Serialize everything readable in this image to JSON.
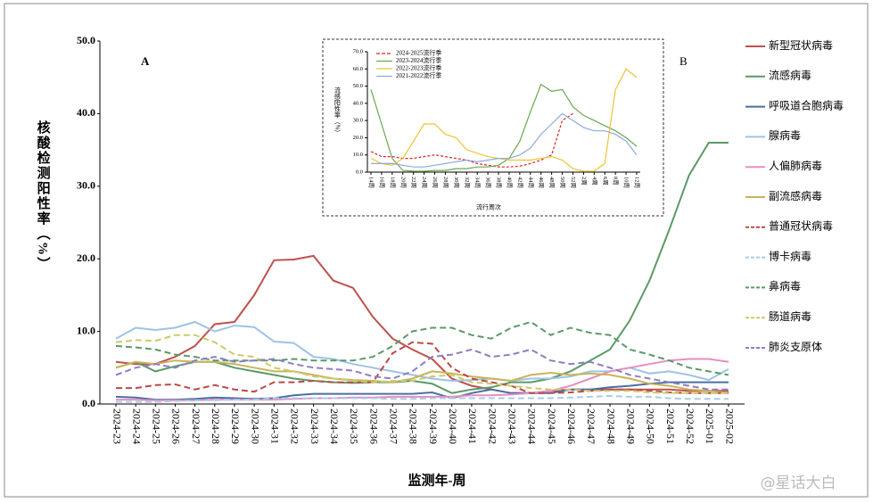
{
  "chart_data": [
    {
      "type": "line",
      "annotations": [
        "A",
        "B"
      ],
      "ylabel": "核酸检测阳性率（%）",
      "xlabel": "监测年-周",
      "categories": [
        "2024-23",
        "2024-24",
        "2024-25",
        "2024-26",
        "2024-27",
        "2024-28",
        "2024-29",
        "2024-30",
        "2024-31",
        "2024-32",
        "2024-33",
        "2024-34",
        "2024-35",
        "2024-36",
        "2024-37",
        "2024-38",
        "2024-39",
        "2024-40",
        "2024-41",
        "2024-42",
        "2024-43",
        "2024-44",
        "2024-45",
        "2024-46",
        "2024-47",
        "2024-48",
        "2024-49",
        "2024-50",
        "2024-51",
        "2024-52",
        "2025-01",
        "2025-02"
      ],
      "ylim": [
        0,
        50
      ],
      "yticks": [
        {
          "value": 0,
          "label": "0.0"
        },
        {
          "value": 10,
          "label": "10.0"
        },
        {
          "value": 20,
          "label": "20.0"
        },
        {
          "value": 30,
          "label": "30.0"
        },
        {
          "value": 40,
          "label": "40.0"
        },
        {
          "value": 50,
          "label": "50.0"
        }
      ],
      "legend": "right",
      "series": [
        {
          "name": "新型冠状病毒",
          "color": "#c0504d",
          "line_style": "solid",
          "values": [
            5.8,
            5.5,
            5.5,
            6.5,
            8,
            11,
            11.3,
            15,
            19.8,
            19.9,
            20.4,
            17,
            16,
            12,
            9,
            7.5,
            6.2,
            3.5,
            2.5,
            2,
            1.5,
            1.5,
            1.8,
            2,
            2,
            2,
            2,
            2,
            2,
            1.8,
            1.8,
            1.8
          ]
        },
        {
          "name": "流感病毒",
          "color": "#5b9a68",
          "line_style": "solid",
          "values": [
            5,
            5.8,
            4.5,
            5.2,
            5.8,
            5.8,
            5,
            4.5,
            4,
            3.5,
            3.2,
            3,
            2.9,
            3,
            3,
            3.2,
            2.8,
            1.5,
            2,
            2.3,
            3,
            3,
            3.5,
            4.5,
            6,
            7.5,
            11.5,
            17,
            24,
            31.5,
            36,
            36
          ]
        },
        {
          "name": "呼吸道合胞病毒",
          "color": "#4a6fa5",
          "line_style": "solid",
          "values": [
            1,
            0.9,
            0.6,
            0.6,
            0.7,
            0.9,
            0.8,
            0.7,
            0.8,
            1.2,
            1.4,
            1.4,
            1.4,
            1.4,
            1.4,
            1.4,
            1.6,
            0.8,
            1.5,
            2,
            1.5,
            1.5,
            1.5,
            2,
            2,
            2.3,
            2.5,
            2.8,
            3,
            3,
            3,
            3
          ]
        },
        {
          "name": "腺病毒",
          "color": "#9dc3e6",
          "line_style": "solid",
          "values": [
            9,
            10.5,
            10.2,
            10.5,
            11.3,
            10,
            10.8,
            10.6,
            8.6,
            8.4,
            6.5,
            6.2,
            5.5,
            5,
            4.5,
            4,
            3.5,
            3.2,
            3.3,
            3.5,
            3.2,
            3.5,
            3.5,
            3.8,
            4.5,
            4.5,
            5,
            4.2,
            4.5,
            4,
            3.3,
            4.8
          ]
        },
        {
          "name": "人偏肺病毒",
          "color": "#e58fbf",
          "line_style": "solid",
          "values": [
            0.6,
            0.6,
            0.5,
            0.5,
            0.5,
            0.6,
            0.6,
            0.6,
            0.6,
            0.7,
            0.8,
            0.8,
            0.9,
            0.9,
            1,
            1,
            1,
            1,
            1.2,
            1.2,
            1.3,
            1.5,
            1.8,
            2.5,
            3.5,
            4.5,
            5,
            5.5,
            6,
            6.2,
            6.2,
            5.8
          ]
        },
        {
          "name": "副流感病毒",
          "color": "#c9b458",
          "line_style": "solid",
          "values": [
            5,
            5.8,
            5.5,
            6,
            5.8,
            5.8,
            5.5,
            5,
            4.5,
            4.5,
            4,
            3.5,
            3.3,
            3.2,
            3,
            3.5,
            4.5,
            4.2,
            3.8,
            3.5,
            3.2,
            4,
            4.3,
            4,
            4.2,
            4,
            3.5,
            2.8,
            2.5,
            2,
            1.8,
            1.5
          ]
        },
        {
          "name": "普通冠状病毒",
          "color": "#b94a48",
          "line_style": "dashed",
          "values": [
            2.2,
            2.2,
            2.6,
            2.7,
            2,
            2.6,
            2,
            1.7,
            3,
            3,
            3.2,
            3,
            3,
            3,
            7,
            8.5,
            8.3,
            5,
            3.5,
            3,
            2.5,
            1.5,
            1.5,
            1.6,
            1.8,
            2,
            2,
            1.8,
            1.6,
            1.5,
            1.5,
            1.5
          ]
        },
        {
          "name": "博卡病毒",
          "color": "#a9cbe8",
          "line_style": "dashed",
          "values": [
            0.3,
            0.3,
            0.3,
            0.4,
            0.5,
            0.5,
            0.6,
            0.6,
            0.8,
            0.8,
            0.8,
            0.8,
            0.8,
            0.8,
            0.7,
            0.7,
            0.8,
            0.8,
            0.8,
            0.8,
            0.8,
            0.8,
            0.8,
            0.9,
            1,
            1.1,
            1,
            1,
            0.8,
            0.7,
            0.7,
            0.7
          ]
        },
        {
          "name": "鼻病毒",
          "color": "#5b9a68",
          "line_style": "dashed",
          "values": [
            8,
            7.8,
            7.5,
            6.8,
            6.5,
            6,
            6,
            6,
            6,
            6.2,
            6,
            6,
            6,
            6.5,
            8,
            10,
            10.5,
            10.5,
            9.5,
            9,
            10.5,
            11.3,
            9.5,
            10.5,
            9.8,
            9.5,
            7.5,
            6.8,
            6,
            5,
            4.5,
            4
          ]
        },
        {
          "name": "肠道病毒",
          "color": "#cfc96a",
          "line_style": "dashed",
          "values": [
            8.5,
            8.8,
            8.7,
            9.5,
            9.5,
            8.5,
            6.8,
            6.5,
            5,
            4.5,
            3.8,
            3.5,
            3.2,
            3,
            3.2,
            3.2,
            3.8,
            4,
            3,
            2.8,
            2.5,
            2.2,
            2,
            2,
            1.8,
            1.8,
            1.8,
            1.6,
            1.5,
            1.5,
            1.5,
            1.5
          ]
        },
        {
          "name": "肺炎支原体",
          "color": "#8e7cc3",
          "line_style": "dashed",
          "values": [
            4,
            5,
            5.5,
            5,
            6,
            6.5,
            5.8,
            6,
            6.2,
            5.5,
            5,
            4.8,
            4.6,
            3.8,
            3.5,
            4.5,
            6.5,
            6.8,
            7.5,
            6.5,
            6.8,
            7.5,
            6,
            5.5,
            5.8,
            5,
            4,
            3.5,
            3,
            2.5,
            2,
            2
          ]
        }
      ]
    },
    {
      "type": "line",
      "ylabel": "流感阳性率（%）",
      "xlabel": "流行周次",
      "categories": [
        "14周",
        "16周",
        "18周",
        "20周",
        "22周",
        "24周",
        "26周",
        "28周",
        "30周",
        "32周",
        "34周",
        "36周",
        "38周",
        "40周",
        "42周",
        "44周",
        "46周",
        "48周",
        "50周",
        "52周",
        "2周",
        "4周",
        "6周",
        "8周",
        "10周",
        "12周"
      ],
      "ylim": [
        0,
        70
      ],
      "yticks": [
        {
          "value": 0,
          "label": "0.0"
        },
        {
          "value": 10,
          "label": "10.0"
        },
        {
          "value": 20,
          "label": "20.0"
        },
        {
          "value": 30,
          "label": "30.0"
        },
        {
          "value": 40,
          "label": "40.0"
        },
        {
          "value": 50,
          "label": "50.0"
        },
        {
          "value": 60,
          "label": "60.0"
        },
        {
          "value": 70,
          "label": "70.0"
        }
      ],
      "legend": "upper left",
      "series": [
        {
          "name": "2024-2025流行季",
          "color": "#e02020",
          "line_style": "dashed",
          "values": [
            12,
            9,
            9,
            8,
            8,
            9,
            10,
            9,
            8,
            7,
            5,
            4,
            3,
            3,
            3.5,
            5,
            7,
            10,
            30,
            34,
            null,
            null,
            null,
            null,
            null,
            null
          ]
        },
        {
          "name": "2023-2024流行季",
          "color": "#6aa84f",
          "line_style": "solid",
          "values": [
            48,
            28,
            8,
            1,
            0.5,
            0.5,
            1,
            1,
            2,
            2,
            3,
            3,
            4,
            8,
            18,
            35,
            51,
            47,
            48,
            38,
            33,
            30,
            27,
            24,
            20,
            15
          ]
        },
        {
          "name": "2022-2023流行季",
          "color": "#f1c232",
          "line_style": "solid",
          "values": [
            8,
            5,
            4,
            8,
            18,
            28,
            28,
            22,
            20,
            13,
            11,
            9,
            8,
            7,
            7,
            7,
            8,
            9,
            7,
            2,
            0.5,
            0.5,
            5,
            48,
            60,
            55
          ]
        },
        {
          "name": "2021-2022流行季",
          "color": "#8ea9db",
          "line_style": "solid",
          "values": [
            5,
            5,
            5,
            4,
            3,
            3,
            4,
            5,
            6,
            7,
            6,
            7,
            8,
            8,
            10,
            14,
            22,
            28,
            34,
            30,
            26,
            24,
            24,
            22,
            18,
            10
          ]
        }
      ]
    }
  ],
  "watermark": "@星话大白"
}
